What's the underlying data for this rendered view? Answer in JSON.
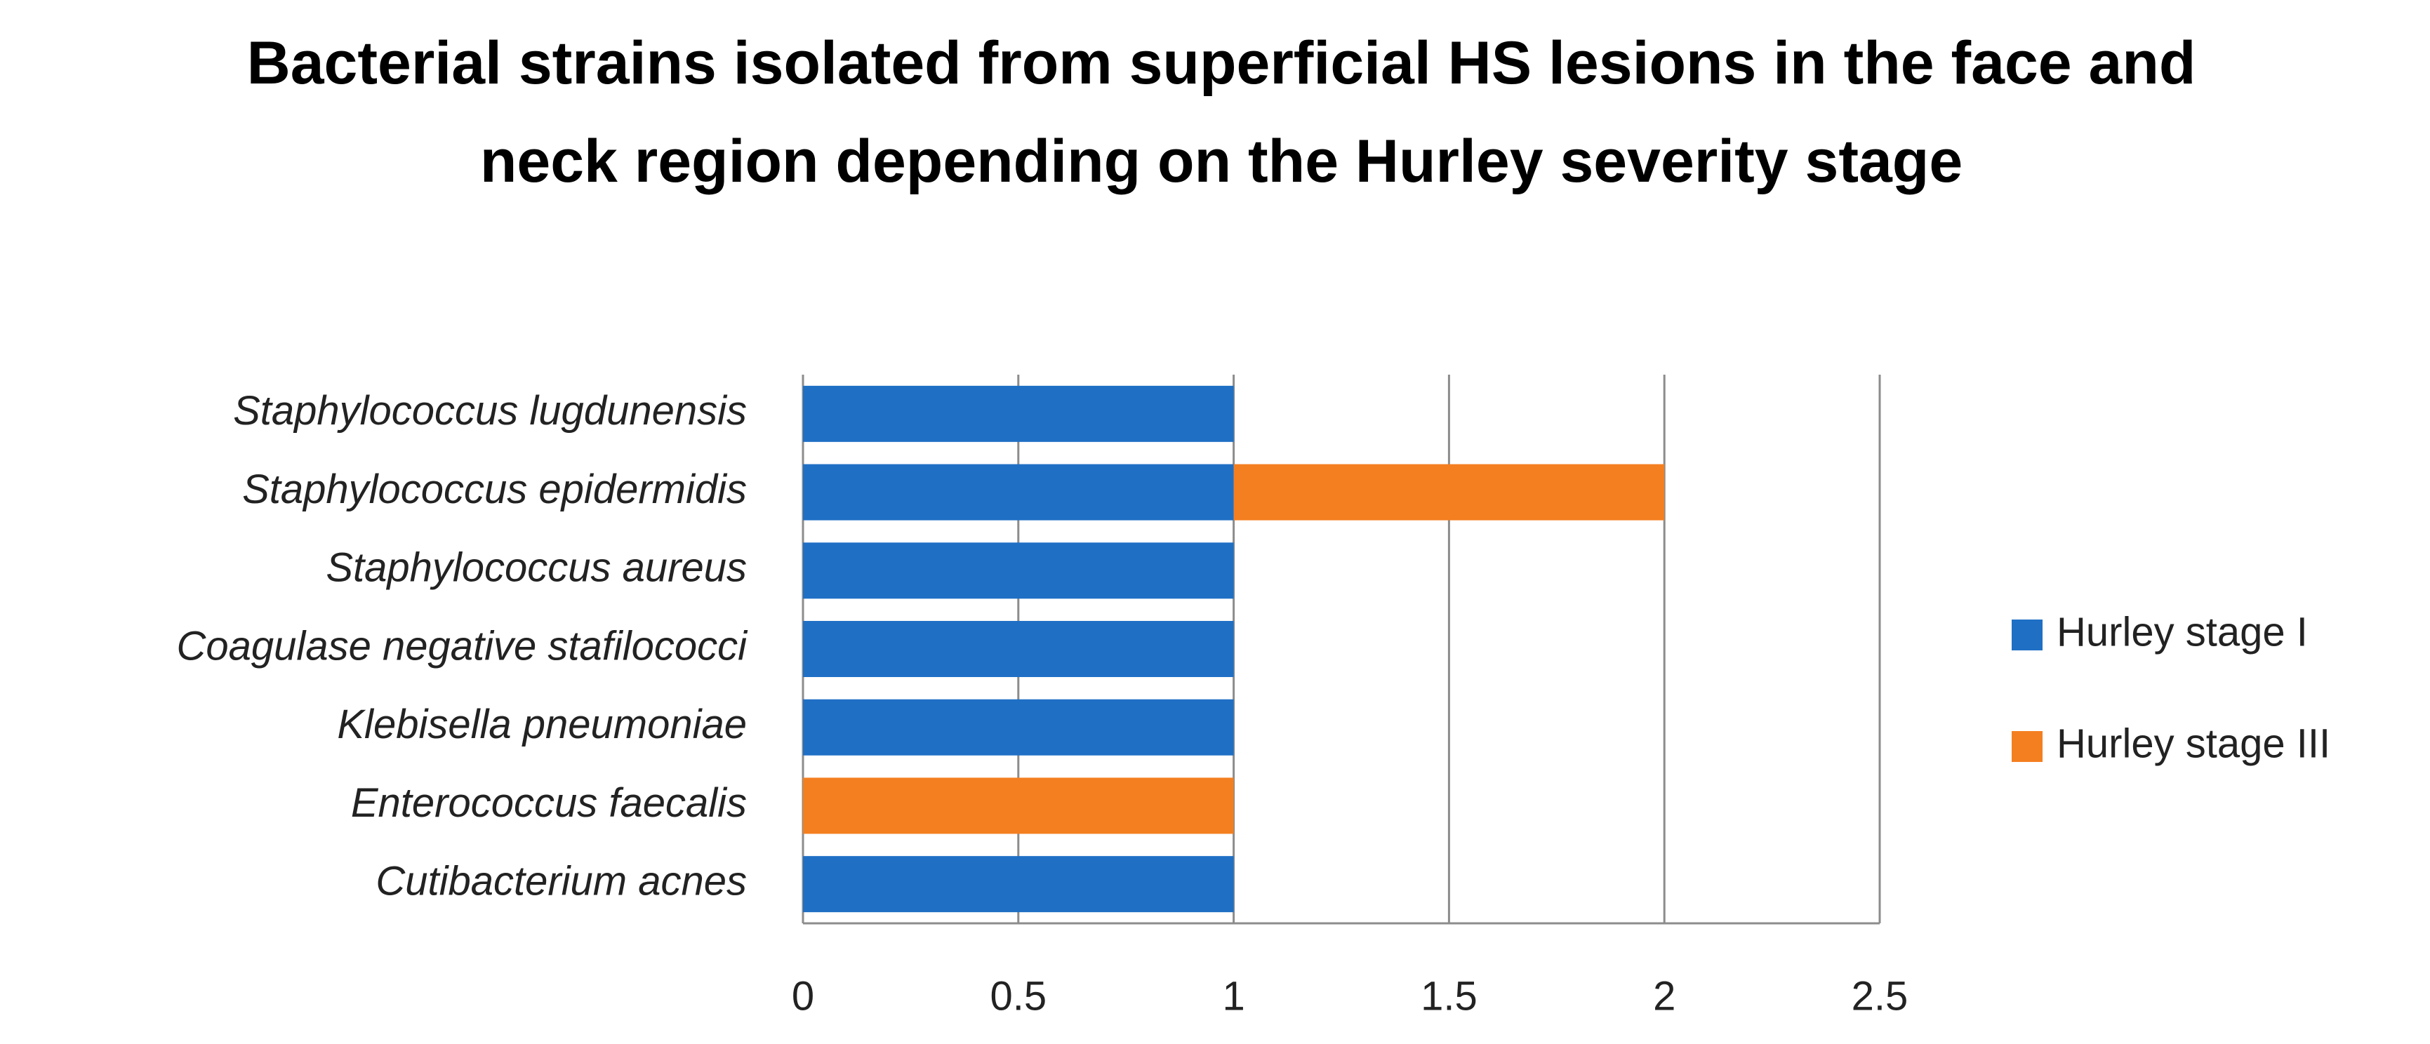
{
  "chart_data": {
    "type": "stacked-bar-horizontal",
    "title": "Bacterial strains isolated from superficial HS lesions in the face and neck region depending on the Hurley severity stage",
    "categories": [
      "Staphylococcus lugdunensis",
      "Staphylococcus epidermidis",
      "Staphylococcus aureus",
      "Coagulase negative stafilococci",
      "Klebisella pneumoniae",
      "Enterococcus faecalis",
      "Cutibacterium acnes"
    ],
    "series": [
      {
        "name": "Hurley stage I",
        "color": "#1f6fc5",
        "values": [
          1,
          1,
          1,
          1,
          1,
          0,
          1
        ]
      },
      {
        "name": "Hurley stage III",
        "color": "#f47f20",
        "values": [
          0,
          1,
          0,
          0,
          0,
          1,
          0
        ]
      }
    ],
    "xlim": [
      0,
      2.5
    ],
    "xticks": [
      0,
      0.5,
      1,
      1.5,
      2,
      2.5
    ],
    "grid": true,
    "legend": "right"
  }
}
